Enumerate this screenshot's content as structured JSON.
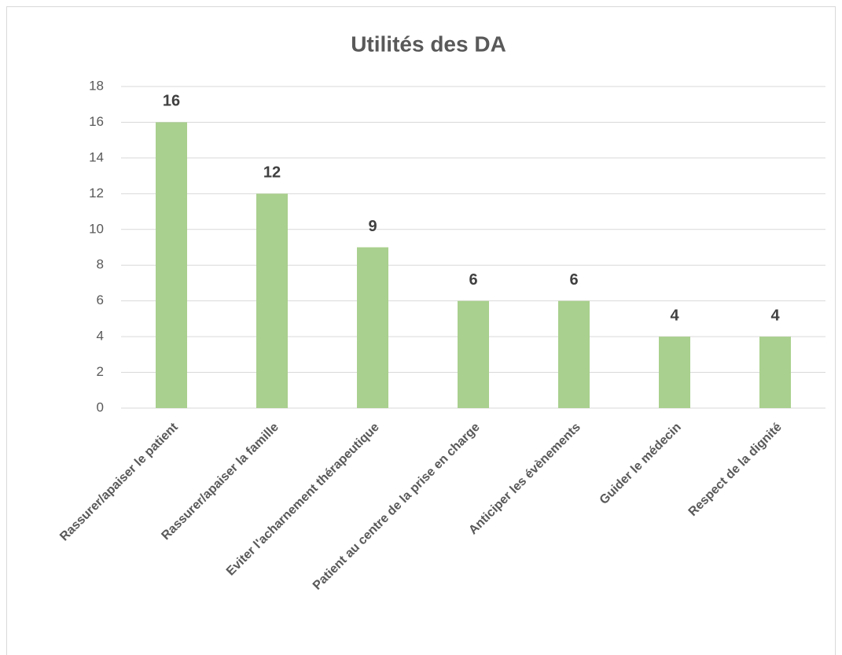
{
  "chart_data": {
    "type": "bar",
    "title": "Utilités des DA",
    "categories": [
      "Rassurer/apaiser le patient",
      "Rassurer/apaiser la famille",
      "Eviter l'acharnement thérapeutique",
      "Patient au centre de la prise en charge",
      "Anticiper les évènements",
      "Guider le médecin",
      "Respect de la dignité"
    ],
    "values": [
      16,
      12,
      9,
      6,
      6,
      4,
      4
    ],
    "color": "#a9d08e",
    "ylim": [
      0,
      18
    ],
    "yticks": [
      0,
      2,
      4,
      6,
      8,
      10,
      12,
      14,
      16,
      18
    ],
    "grid": true
  }
}
